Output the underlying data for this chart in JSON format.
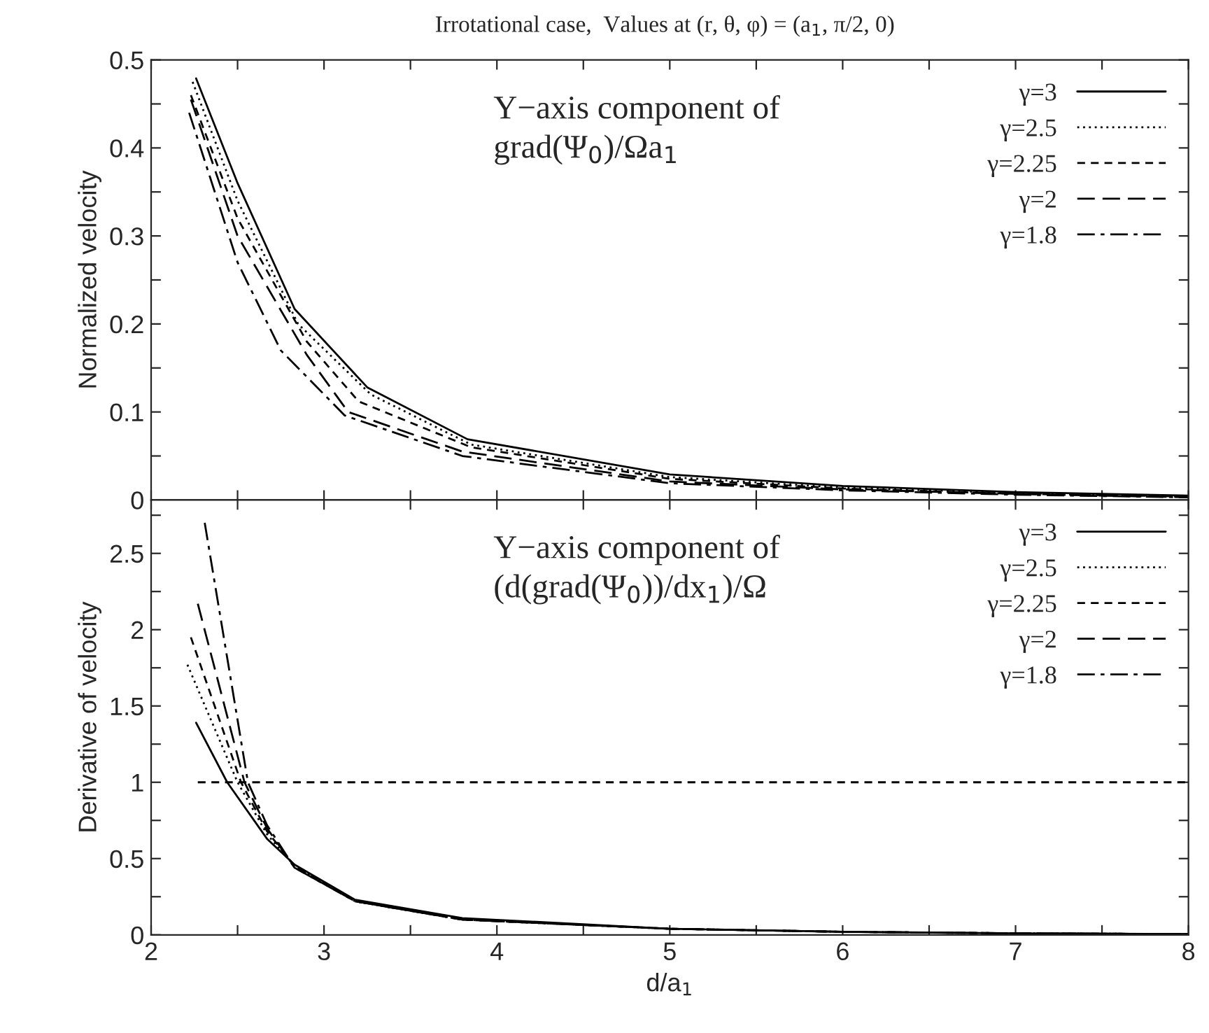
{
  "chart_data": [
    {
      "type": "line",
      "title": "Irrotational case,  Values at (r, θ, φ) = (a$_{1}$, π/2, 0)",
      "ylabel": "Normalized velocity",
      "annotations": [
        "Y−axis component of\ngrad(Ψ$_{0}$)/Ωa$_{1}$"
      ],
      "legend": "top right",
      "tick_labels": "y",
      "xlim": [
        2,
        8
      ],
      "ylim": [
        0,
        0.5
      ],
      "xticks": [
        2,
        {
          "value": 2.5,
          "label": null
        },
        3,
        {
          "value": 3.5,
          "label": null
        },
        4,
        {
          "value": 4.5,
          "label": null
        },
        5,
        {
          "value": 5.5,
          "label": null
        },
        6,
        {
          "value": 6.5,
          "label": null
        },
        7,
        {
          "value": 7.5,
          "label": null
        },
        8
      ],
      "yticks": [
        0,
        {
          "value": 0.05,
          "label": null
        },
        0.1,
        {
          "value": 0.15,
          "label": null
        },
        0.2,
        {
          "value": 0.25,
          "label": null
        },
        0.3,
        {
          "value": 0.35,
          "label": null
        },
        0.4,
        {
          "value": 0.45,
          "label": null
        },
        0.5
      ],
      "series": [
        {
          "name": "γ=3",
          "color": "#000000",
          "line_style": "solid",
          "x": [
            2.26,
            2.5,
            2.83,
            3.25,
            3.83,
            5,
            6,
            7,
            8
          ],
          "values": [
            0.479,
            0.36,
            0.217,
            0.128,
            0.069,
            0.029,
            0.016,
            0.009,
            0.005
          ]
        },
        {
          "name": "γ=2.5",
          "color": "#000000",
          "line_style": "dotted",
          "x": [
            2.24,
            2.5,
            2.85,
            3.27,
            3.85,
            5,
            6,
            7,
            8
          ],
          "values": [
            0.475,
            0.34,
            0.2,
            0.12,
            0.063,
            0.026,
            0.014,
            0.008,
            0.004
          ]
        },
        {
          "name": "γ=2.25",
          "color": "#000000",
          "line_style": "dashed",
          "x": [
            2.23,
            2.5,
            2.9,
            3.2,
            3.85,
            5,
            6,
            7,
            8
          ],
          "values": [
            0.46,
            0.32,
            0.18,
            0.112,
            0.06,
            0.024,
            0.013,
            0.007,
            0.004
          ]
        },
        {
          "name": "γ=2",
          "color": "#000000",
          "line_style": "longdash",
          "x": [
            2.23,
            2.5,
            2.9,
            3.14,
            3.8,
            5,
            6,
            7,
            8
          ],
          "values": [
            0.455,
            0.3,
            0.165,
            0.1,
            0.055,
            0.021,
            0.012,
            0.007,
            0.003
          ]
        },
        {
          "name": "γ=1.8",
          "color": "#000000",
          "line_style": "dashdot",
          "x": [
            2.22,
            2.5,
            2.75,
            3.12,
            3.8,
            5,
            6,
            7,
            8
          ],
          "values": [
            0.44,
            0.27,
            0.17,
            0.096,
            0.05,
            0.019,
            0.011,
            0.006,
            0.003
          ]
        }
      ]
    },
    {
      "type": "line",
      "xlabel": "d/a$_{1}$",
      "ylabel": "Derivative of velocity",
      "annotations": [
        "Y−axis component of\n(d(grad(Ψ$_{0}$))/dx$_{1}$)/Ω"
      ],
      "legend": "top right",
      "xlim": [
        2,
        8
      ],
      "ylim": [
        0,
        2.85
      ],
      "xticks": [
        2,
        {
          "value": 2.5,
          "label": null
        },
        3,
        {
          "value": 3.5,
          "label": null
        },
        4,
        {
          "value": 4.5,
          "label": null
        },
        5,
        {
          "value": 5.5,
          "label": null
        },
        6,
        {
          "value": 6.5,
          "label": null
        },
        7,
        {
          "value": 7.5,
          "label": null
        },
        8
      ],
      "yticks": [
        0,
        {
          "value": 0.25,
          "label": null
        },
        0.5,
        {
          "value": 0.75,
          "label": null
        },
        1,
        {
          "value": 1.25,
          "label": null
        },
        1.5,
        {
          "value": 1.75,
          "label": null
        },
        2,
        {
          "value": 2.25,
          "label": null
        },
        2.5,
        {
          "value": 2.75,
          "label": null
        }
      ],
      "series": [
        {
          "name": "γ=3",
          "color": "#000000",
          "line_style": "solid",
          "x": [
            2.26,
            2.44,
            2.67,
            2.83,
            3.18,
            3.8,
            5,
            6,
            7,
            8
          ],
          "values": [
            1.39,
            1.0,
            0.63,
            0.46,
            0.23,
            0.11,
            0.04,
            0.02,
            0.01,
            0.005
          ]
        },
        {
          "name": "γ=2.5",
          "color": "#000000",
          "line_style": "dotted",
          "x": [
            2.21,
            2.5,
            2.67,
            2.83,
            3.18,
            3.8,
            5,
            6,
            7,
            8
          ],
          "values": [
            1.77,
            1.0,
            0.66,
            0.45,
            0.22,
            0.1,
            0.04,
            0.02,
            0.01,
            0.005
          ]
        },
        {
          "name": "γ=2.25",
          "color": "#000000",
          "line_style": "dashed",
          "x": [
            2.23,
            2.52,
            2.67,
            2.83,
            3.18,
            3.8,
            5,
            6,
            7,
            8
          ],
          "values": [
            1.95,
            1.0,
            0.68,
            0.45,
            0.22,
            0.1,
            0.04,
            0.02,
            0.01,
            0.005
          ]
        },
        {
          "name": "γ=2",
          "color": "#000000",
          "line_style": "longdash",
          "x": [
            2.27,
            2.54,
            2.67,
            2.83,
            3.18,
            3.8,
            5,
            6,
            7,
            8
          ],
          "values": [
            2.17,
            1.0,
            0.7,
            0.44,
            0.22,
            0.1,
            0.04,
            0.02,
            0.01,
            0.005
          ]
        },
        {
          "name": "γ=1.8",
          "color": "#000000",
          "line_style": "dashdot",
          "x": [
            2.31,
            2.56,
            2.67,
            2.83,
            3.18,
            3.8,
            5,
            6,
            7,
            8
          ],
          "values": [
            2.7,
            1.0,
            0.72,
            0.44,
            0.22,
            0.1,
            0.04,
            0.02,
            0.01,
            0.005
          ]
        },
        {
          "color": "#000000",
          "line_style": "dashed",
          "x": [
            2.27,
            8
          ],
          "values": [
            1,
            1
          ]
        }
      ]
    }
  ]
}
